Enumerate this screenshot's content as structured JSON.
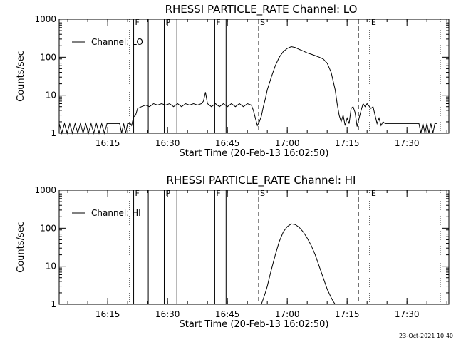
{
  "stamp": "23-Oct-2021 10:40",
  "chart_data": [
    {
      "type": "line",
      "title": "RHESSI PARTICLE_RATE Channel: LO",
      "xlabel": "Start Time (20-Feb-13 16:02:50)",
      "ylabel": "Counts/sec",
      "yscale": "log",
      "ylim": [
        1,
        1000
      ],
      "xlim": [
        "16:02:50",
        "17:40:30"
      ],
      "grid": false,
      "legend_position": "top-left",
      "xticks": [
        "16:15",
        "16:30",
        "16:45",
        "17:00",
        "17:15",
        "17:30"
      ],
      "yticks": [
        "1",
        "10",
        "100",
        "1000"
      ],
      "series": [
        {
          "name": "Channel: LO",
          "points": [
            [
              "16:02:50",
              1.8
            ],
            [
              "16:03:30",
              1.0
            ],
            [
              "16:04:10",
              1.8
            ],
            [
              "16:04:50",
              1.0
            ],
            [
              "16:05:30",
              1.8
            ],
            [
              "16:06:10",
              1.0
            ],
            [
              "16:06:50",
              1.8
            ],
            [
              "16:07:30",
              1.0
            ],
            [
              "16:08:10",
              1.8
            ],
            [
              "16:08:50",
              1.0
            ],
            [
              "16:09:30",
              1.8
            ],
            [
              "16:10:10",
              1.0
            ],
            [
              "16:10:50",
              1.8
            ],
            [
              "16:11:30",
              1.0
            ],
            [
              "16:12:10",
              1.8
            ],
            [
              "16:12:50",
              1.0
            ],
            [
              "16:13:30",
              1.8
            ],
            [
              "16:14:10",
              1.0
            ],
            [
              "16:14:50",
              1.8
            ],
            [
              "16:18:00",
              1.8
            ],
            [
              "16:18:30",
              1.0
            ],
            [
              "16:19:00",
              1.8
            ],
            [
              "16:19:30",
              1.0
            ],
            [
              "16:20:00",
              1.8
            ],
            [
              "16:20:40",
              1.8
            ],
            [
              "16:21:00",
              1.6
            ],
            [
              "16:21:30",
              2.7
            ],
            [
              "16:22:00",
              3.0
            ],
            [
              "16:22:30",
              4.5
            ],
            [
              "16:23:30",
              5.0
            ],
            [
              "16:24:30",
              5.5
            ],
            [
              "16:25:30",
              5.0
            ],
            [
              "16:26:30",
              6.0
            ],
            [
              "16:27:30",
              5.5
            ],
            [
              "16:28:30",
              6.0
            ],
            [
              "16:29:30",
              5.5
            ],
            [
              "16:30:30",
              6.0
            ],
            [
              "16:31:30",
              5.0
            ],
            [
              "16:32:30",
              6.0
            ],
            [
              "16:33:30",
              5.0
            ],
            [
              "16:34:30",
              6.0
            ],
            [
              "16:35:30",
              5.5
            ],
            [
              "16:36:30",
              6.0
            ],
            [
              "16:37:30",
              5.5
            ],
            [
              "16:38:30",
              6.0
            ],
            [
              "16:39:00",
              7.0
            ],
            [
              "16:39:30",
              12.0
            ],
            [
              "16:40:00",
              6.0
            ],
            [
              "16:41:00",
              5.0
            ],
            [
              "16:42:00",
              6.0
            ],
            [
              "16:43:00",
              5.0
            ],
            [
              "16:44:00",
              6.0
            ],
            [
              "16:45:00",
              5.0
            ],
            [
              "16:46:00",
              6.0
            ],
            [
              "16:47:00",
              5.0
            ],
            [
              "16:48:00",
              6.0
            ],
            [
              "16:49:00",
              5.0
            ],
            [
              "16:50:00",
              6.0
            ],
            [
              "16:51:00",
              5.5
            ],
            [
              "16:51:30",
              4.0
            ],
            [
              "16:52:00",
              2.5
            ],
            [
              "16:52:30",
              1.6
            ],
            [
              "16:53:00",
              2.0
            ],
            [
              "16:53:30",
              2.8
            ],
            [
              "16:54:00",
              5.0
            ],
            [
              "16:54:30",
              8.0
            ],
            [
              "16:55:00",
              14.0
            ],
            [
              "16:56:00",
              30.0
            ],
            [
              "16:57:00",
              60.0
            ],
            [
              "16:58:00",
              100.0
            ],
            [
              "16:59:00",
              140.0
            ],
            [
              "17:00:00",
              170.0
            ],
            [
              "17:01:00",
              190.0
            ],
            [
              "17:02:00",
              180.0
            ],
            [
              "17:03:00",
              160.0
            ],
            [
              "17:04:00",
              145.0
            ],
            [
              "17:05:00",
              130.0
            ],
            [
              "17:06:00",
              120.0
            ],
            [
              "17:07:00",
              110.0
            ],
            [
              "17:08:00",
              100.0
            ],
            [
              "17:09:00",
              90.0
            ],
            [
              "17:10:00",
              70.0
            ],
            [
              "17:11:00",
              40.0
            ],
            [
              "17:12:00",
              14.0
            ],
            [
              "17:12:30",
              6.0
            ],
            [
              "17:13:00",
              3.0
            ],
            [
              "17:13:30",
              2.0
            ],
            [
              "17:14:00",
              3.0
            ],
            [
              "17:14:30",
              1.6
            ],
            [
              "17:15:00",
              2.5
            ],
            [
              "17:15:30",
              1.8
            ],
            [
              "17:16:00",
              4.5
            ],
            [
              "17:16:30",
              5.0
            ],
            [
              "17:17:00",
              3.5
            ],
            [
              "17:17:30",
              1.5
            ],
            [
              "17:18:00",
              2.5
            ],
            [
              "17:18:30",
              4.0
            ],
            [
              "17:19:00",
              6.0
            ],
            [
              "17:19:30",
              5.0
            ],
            [
              "17:20:00",
              6.0
            ],
            [
              "17:21:00",
              4.5
            ],
            [
              "17:21:30",
              5.0
            ],
            [
              "17:22:00",
              3.0
            ],
            [
              "17:22:30",
              1.8
            ],
            [
              "17:23:00",
              2.5
            ],
            [
              "17:23:30",
              1.6
            ],
            [
              "17:24:00",
              2.0
            ],
            [
              "17:24:30",
              1.8
            ],
            [
              "17:26:00",
              1.8
            ],
            [
              "17:28:00",
              1.8
            ],
            [
              "17:30:00",
              1.8
            ],
            [
              "17:32:00",
              1.8
            ],
            [
              "17:33:00",
              1.8
            ],
            [
              "17:33:30",
              1.0
            ],
            [
              "17:34:00",
              1.8
            ],
            [
              "17:34:30",
              1.0
            ],
            [
              "17:35:00",
              1.8
            ],
            [
              "17:35:30",
              1.0
            ],
            [
              "17:36:00",
              1.8
            ],
            [
              "17:36:30",
              1.0
            ],
            [
              "17:37:00",
              1.8
            ],
            [
              "17:37:30",
              1.8
            ]
          ]
        }
      ],
      "markers": [
        {
          "time": "16:20:30",
          "style": "dotted",
          "label": ""
        },
        {
          "time": "16:21:30",
          "style": "solid",
          "label": "F"
        },
        {
          "time": "16:25:10",
          "style": "solid",
          "label": ""
        },
        {
          "time": "16:29:10",
          "style": "solid",
          "label": "P"
        },
        {
          "time": "16:32:20",
          "style": "solid",
          "label": ""
        },
        {
          "time": "16:41:50",
          "style": "solid",
          "label": "F"
        },
        {
          "time": "16:44:40",
          "style": "solid",
          "label": ""
        },
        {
          "time": "16:52:50",
          "style": "dashed",
          "label": "S"
        },
        {
          "time": "17:17:50",
          "style": "dashed",
          "label": ""
        },
        {
          "time": "17:20:40",
          "style": "dotted",
          "label": "E"
        },
        {
          "time": "17:38:20",
          "style": "dotted",
          "label": ""
        }
      ]
    },
    {
      "type": "line",
      "title": "RHESSI PARTICLE_RATE Channel: HI",
      "xlabel": "Start Time (20-Feb-13 16:02:50)",
      "ylabel": "Counts/sec",
      "yscale": "log",
      "ylim": [
        1,
        1000
      ],
      "xlim": [
        "16:02:50",
        "17:40:30"
      ],
      "grid": false,
      "legend_position": "top-left",
      "xticks": [
        "16:15",
        "16:30",
        "16:45",
        "17:00",
        "17:15",
        "17:30"
      ],
      "yticks": [
        "1",
        "10",
        "100",
        "1000"
      ],
      "series": [
        {
          "name": "Channel: HI",
          "points": [
            [
              "16:53:30",
              1.0
            ],
            [
              "16:54:00",
              1.4
            ],
            [
              "16:54:30",
              2.0
            ],
            [
              "16:55:00",
              3.0
            ],
            [
              "16:55:30",
              5.0
            ],
            [
              "16:56:00",
              8.0
            ],
            [
              "16:57:00",
              20.0
            ],
            [
              "16:58:00",
              45.0
            ],
            [
              "16:59:00",
              80.0
            ],
            [
              "17:00:00",
              110.0
            ],
            [
              "17:01:00",
              130.0
            ],
            [
              "17:02:00",
              125.0
            ],
            [
              "17:03:00",
              105.0
            ],
            [
              "17:04:00",
              80.0
            ],
            [
              "17:05:00",
              55.0
            ],
            [
              "17:06:00",
              35.0
            ],
            [
              "17:07:00",
              20.0
            ],
            [
              "17:08:00",
              10.0
            ],
            [
              "17:09:00",
              5.0
            ],
            [
              "17:10:00",
              2.5
            ],
            [
              "17:11:00",
              1.5
            ],
            [
              "17:11:30",
              1.2
            ],
            [
              "17:12:00",
              1.0
            ]
          ]
        }
      ],
      "markers": [
        {
          "time": "16:20:30",
          "style": "dotted",
          "label": ""
        },
        {
          "time": "16:21:30",
          "style": "solid",
          "label": "F"
        },
        {
          "time": "16:25:10",
          "style": "solid",
          "label": ""
        },
        {
          "time": "16:29:10",
          "style": "solid",
          "label": "P"
        },
        {
          "time": "16:32:20",
          "style": "solid",
          "label": ""
        },
        {
          "time": "16:41:50",
          "style": "solid",
          "label": "F"
        },
        {
          "time": "16:44:40",
          "style": "solid",
          "label": ""
        },
        {
          "time": "16:52:50",
          "style": "dashed",
          "label": "S"
        },
        {
          "time": "17:17:50",
          "style": "dashed",
          "label": ""
        },
        {
          "time": "17:20:40",
          "style": "dotted",
          "label": "E"
        },
        {
          "time": "17:38:20",
          "style": "dotted",
          "label": ""
        }
      ]
    }
  ]
}
